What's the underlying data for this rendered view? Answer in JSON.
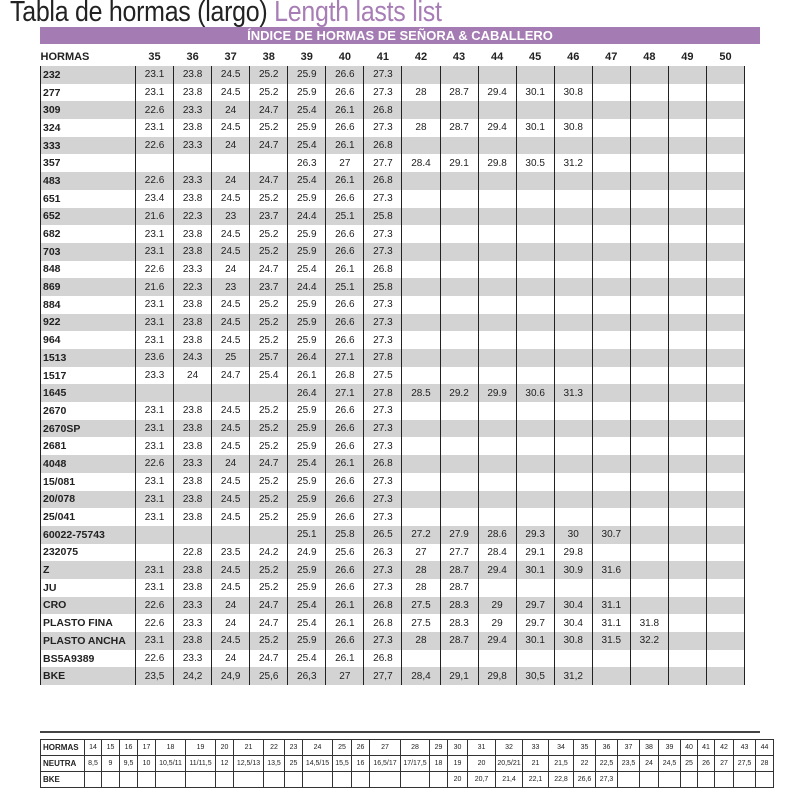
{
  "title": {
    "es": "Tabla de hormas (largo)",
    "en": "Length lasts list"
  },
  "banner": "ÍNDICE DE HORMAS DE SEÑORA & CABALLERO",
  "colors": {
    "accent": "#a57bb3",
    "title_en": "#a77db5",
    "row_shade": "#d3d3d4"
  },
  "main": {
    "header_label": "HORMAS",
    "sizes": [
      "35",
      "36",
      "37",
      "38",
      "39",
      "40",
      "41",
      "42",
      "43",
      "44",
      "45",
      "46",
      "47",
      "48",
      "49",
      "50"
    ],
    "rows": [
      {
        "name": "232",
        "values": [
          "23.1",
          "23.8",
          "24.5",
          "25.2",
          "25.9",
          "26.6",
          "27.3"
        ]
      },
      {
        "name": "277",
        "values": [
          "23.1",
          "23.8",
          "24.5",
          "25.2",
          "25.9",
          "26.6",
          "27.3",
          "28",
          "28.7",
          "29.4",
          "30.1",
          "30.8"
        ]
      },
      {
        "name": "309",
        "values": [
          "22.6",
          "23.3",
          "24",
          "24.7",
          "25.4",
          "26.1",
          "26.8"
        ]
      },
      {
        "name": "324",
        "values": [
          "23.1",
          "23.8",
          "24.5",
          "25.2",
          "25.9",
          "26.6",
          "27.3",
          "28",
          "28.7",
          "29.4",
          "30.1",
          "30.8"
        ]
      },
      {
        "name": "333",
        "values": [
          "22.6",
          "23.3",
          "24",
          "24.7",
          "25.4",
          "26.1",
          "26.8"
        ]
      },
      {
        "name": "357",
        "values": [
          "",
          "",
          "",
          "",
          "26.3",
          "27",
          "27.7",
          "28.4",
          "29.1",
          "29.8",
          "30.5",
          "31.2"
        ]
      },
      {
        "name": "483",
        "values": [
          "22.6",
          "23.3",
          "24",
          "24.7",
          "25.4",
          "26.1",
          "26.8"
        ]
      },
      {
        "name": "651",
        "values": [
          "23.4",
          "23.8",
          "24.5",
          "25.2",
          "25.9",
          "26.6",
          "27.3"
        ]
      },
      {
        "name": "652",
        "values": [
          "21.6",
          "22.3",
          "23",
          "23.7",
          "24.4",
          "25.1",
          "25.8"
        ]
      },
      {
        "name": "682",
        "values": [
          "23.1",
          "23.8",
          "24.5",
          "25.2",
          "25.9",
          "26.6",
          "27.3"
        ]
      },
      {
        "name": "703",
        "values": [
          "23.1",
          "23.8",
          "24.5",
          "25.2",
          "25.9",
          "26.6",
          "27.3"
        ]
      },
      {
        "name": "848",
        "values": [
          "22.6",
          "23.3",
          "24",
          "24.7",
          "25.4",
          "26.1",
          "26.8"
        ]
      },
      {
        "name": "869",
        "values": [
          "21.6",
          "22.3",
          "23",
          "23.7",
          "24.4",
          "25.1",
          "25.8"
        ]
      },
      {
        "name": "884",
        "values": [
          "23.1",
          "23.8",
          "24.5",
          "25.2",
          "25.9",
          "26.6",
          "27.3"
        ]
      },
      {
        "name": "922",
        "values": [
          "23.1",
          "23.8",
          "24.5",
          "25.2",
          "25.9",
          "26.6",
          "27.3"
        ]
      },
      {
        "name": "964",
        "values": [
          "23.1",
          "23.8",
          "24.5",
          "25.2",
          "25.9",
          "26.6",
          "27.3"
        ]
      },
      {
        "name": "1513",
        "values": [
          "23.6",
          "24.3",
          "25",
          "25.7",
          "26.4",
          "27.1",
          "27.8"
        ]
      },
      {
        "name": "1517",
        "values": [
          "23.3",
          "24",
          "24.7",
          "25.4",
          "26.1",
          "26.8",
          "27.5"
        ]
      },
      {
        "name": "1645",
        "values": [
          "",
          "",
          "",
          "",
          "26.4",
          "27.1",
          "27.8",
          "28.5",
          "29.2",
          "29.9",
          "30.6",
          "31.3"
        ]
      },
      {
        "name": "2670",
        "values": [
          "23.1",
          "23.8",
          "24.5",
          "25.2",
          "25.9",
          "26.6",
          "27.3"
        ]
      },
      {
        "name": "2670SP",
        "values": [
          "23.1",
          "23.8",
          "24.5",
          "25.2",
          "25.9",
          "26.6",
          "27.3"
        ]
      },
      {
        "name": "2681",
        "values": [
          "23.1",
          "23.8",
          "24.5",
          "25.2",
          "25.9",
          "26.6",
          "27.3"
        ]
      },
      {
        "name": "4048",
        "values": [
          "22.6",
          "23.3",
          "24",
          "24.7",
          "25.4",
          "26.1",
          "26.8"
        ]
      },
      {
        "name": "15/081",
        "values": [
          "23.1",
          "23.8",
          "24.5",
          "25.2",
          "25.9",
          "26.6",
          "27.3"
        ]
      },
      {
        "name": "20/078",
        "values": [
          "23.1",
          "23.8",
          "24.5",
          "25.2",
          "25.9",
          "26.6",
          "27.3"
        ]
      },
      {
        "name": "25/041",
        "values": [
          "23.1",
          "23.8",
          "24.5",
          "25.2",
          "25.9",
          "26.6",
          "27.3"
        ]
      },
      {
        "name": "60022-75743",
        "values": [
          "",
          "",
          "",
          "",
          "25.1",
          "25.8",
          "26.5",
          "27.2",
          "27.9",
          "28.6",
          "29.3",
          "30",
          "30.7"
        ]
      },
      {
        "name": "232075",
        "values": [
          "",
          "22.8",
          "23.5",
          "24.2",
          "24.9",
          "25.6",
          "26.3",
          "27",
          "27.7",
          "28.4",
          "29.1",
          "29.8"
        ]
      },
      {
        "name": "Z",
        "values": [
          "23.1",
          "23.8",
          "24.5",
          "25.2",
          "25.9",
          "26.6",
          "27.3",
          "28",
          "28.7",
          "29.4",
          "30.1",
          "30.9",
          "31.6"
        ]
      },
      {
        "name": "JU",
        "values": [
          "23.1",
          "23.8",
          "24.5",
          "25.2",
          "25.9",
          "26.6",
          "27.3",
          "28",
          "28.7"
        ]
      },
      {
        "name": "CRO",
        "values": [
          "22.6",
          "23.3",
          "24",
          "24.7",
          "25.4",
          "26.1",
          "26.8",
          "27.5",
          "28.3",
          "29",
          "29.7",
          "30.4",
          "31.1"
        ]
      },
      {
        "name": "PLASTO FINA",
        "values": [
          "22.6",
          "23.3",
          "24",
          "24.7",
          "25.4",
          "26.1",
          "26.8",
          "27.5",
          "28.3",
          "29",
          "29.7",
          "30.4",
          "31.1",
          "31.8"
        ]
      },
      {
        "name": "PLASTO ANCHA",
        "values": [
          "23.1",
          "23.8",
          "24.5",
          "25.2",
          "25.9",
          "26.6",
          "27.3",
          "28",
          "28.7",
          "29.4",
          "30.1",
          "30.8",
          "31.5",
          "32.2"
        ]
      },
      {
        "name": "BS5A9389",
        "values": [
          "22.6",
          "23.3",
          "24",
          "24.7",
          "25.4",
          "26.1",
          "26.8"
        ]
      },
      {
        "name": "BKE",
        "values": [
          "23,5",
          "24,2",
          "24,9",
          "25,6",
          "26,3",
          "27",
          "27,7",
          "28,4",
          "29,1",
          "29,8",
          "30,5",
          "31,2"
        ]
      }
    ]
  },
  "conversion": {
    "rows": [
      {
        "label": "HORMAS",
        "values": [
          "14",
          "15",
          "16",
          "17",
          "18",
          "19",
          "20",
          "21",
          "22",
          "23",
          "24",
          "25",
          "26",
          "27",
          "28",
          "29",
          "30",
          "31",
          "32",
          "33",
          "34",
          "35",
          "36",
          "37",
          "38",
          "39",
          "40",
          "41",
          "42",
          "43",
          "44"
        ]
      },
      {
        "label": "NEUTRA",
        "values": [
          "8,5",
          "9",
          "9,5",
          "10",
          "10,5/11",
          "11/11,5",
          "12",
          "12,5/13",
          "13,5",
          "25",
          "14,5/15",
          "15,5",
          "16",
          "16,5/17",
          "17/17,5",
          "18",
          "19",
          "20",
          "20,5/21",
          "21",
          "21,5",
          "22",
          "22,5",
          "23,5",
          "24",
          "24,5",
          "25",
          "26",
          "27",
          "27,5",
          "28"
        ]
      },
      {
        "label": "BKE",
        "values": [
          "",
          "",
          "",
          "",
          "",
          "",
          "",
          "",
          "",
          "",
          "",
          "",
          "",
          "",
          "",
          "",
          "20",
          "20,7",
          "21,4",
          "22,1",
          "22,8",
          "26,6",
          "27,3",
          "",
          "",
          "",
          "",
          "",
          "",
          "",
          ""
        ]
      }
    ]
  }
}
